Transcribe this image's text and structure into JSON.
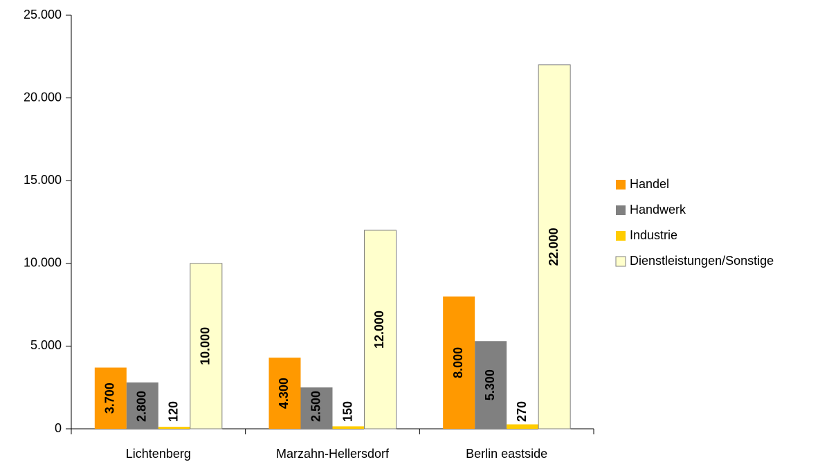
{
  "chart_data": {
    "type": "bar",
    "categories": [
      "Lichtenberg",
      "Marzahn-Hellersdorf",
      "Berlin eastside"
    ],
    "series": [
      {
        "name": "Handel",
        "color": "#ff9900",
        "values": [
          3700,
          4300,
          8000
        ],
        "value_labels": [
          "3.700",
          "4.300",
          "8.000"
        ]
      },
      {
        "name": "Handwerk",
        "color": "#808080",
        "values": [
          2800,
          2500,
          5300
        ],
        "value_labels": [
          "2.800",
          "2.500",
          "5.300"
        ]
      },
      {
        "name": "Industrie",
        "color": "#ffcc00",
        "values": [
          120,
          150,
          270
        ],
        "value_labels": [
          "120",
          "150",
          "270"
        ]
      },
      {
        "name": "Dienstleistungen/Sonstige",
        "color": "#ffffcc",
        "values": [
          10000,
          12000,
          22000
        ],
        "value_labels": [
          "10.000",
          "12.000",
          "22.000"
        ]
      }
    ],
    "ylim": [
      0,
      25000
    ],
    "yticks": [
      0,
      {
        "value": 5000,
        "label": "5.000"
      },
      {
        "value": 10000,
        "label": "10.000"
      },
      {
        "value": 15000,
        "label": "15.000"
      },
      {
        "value": 20000,
        "label": "20.000"
      },
      {
        "value": 25000,
        "label": "25.000"
      }
    ],
    "legend": "right"
  }
}
